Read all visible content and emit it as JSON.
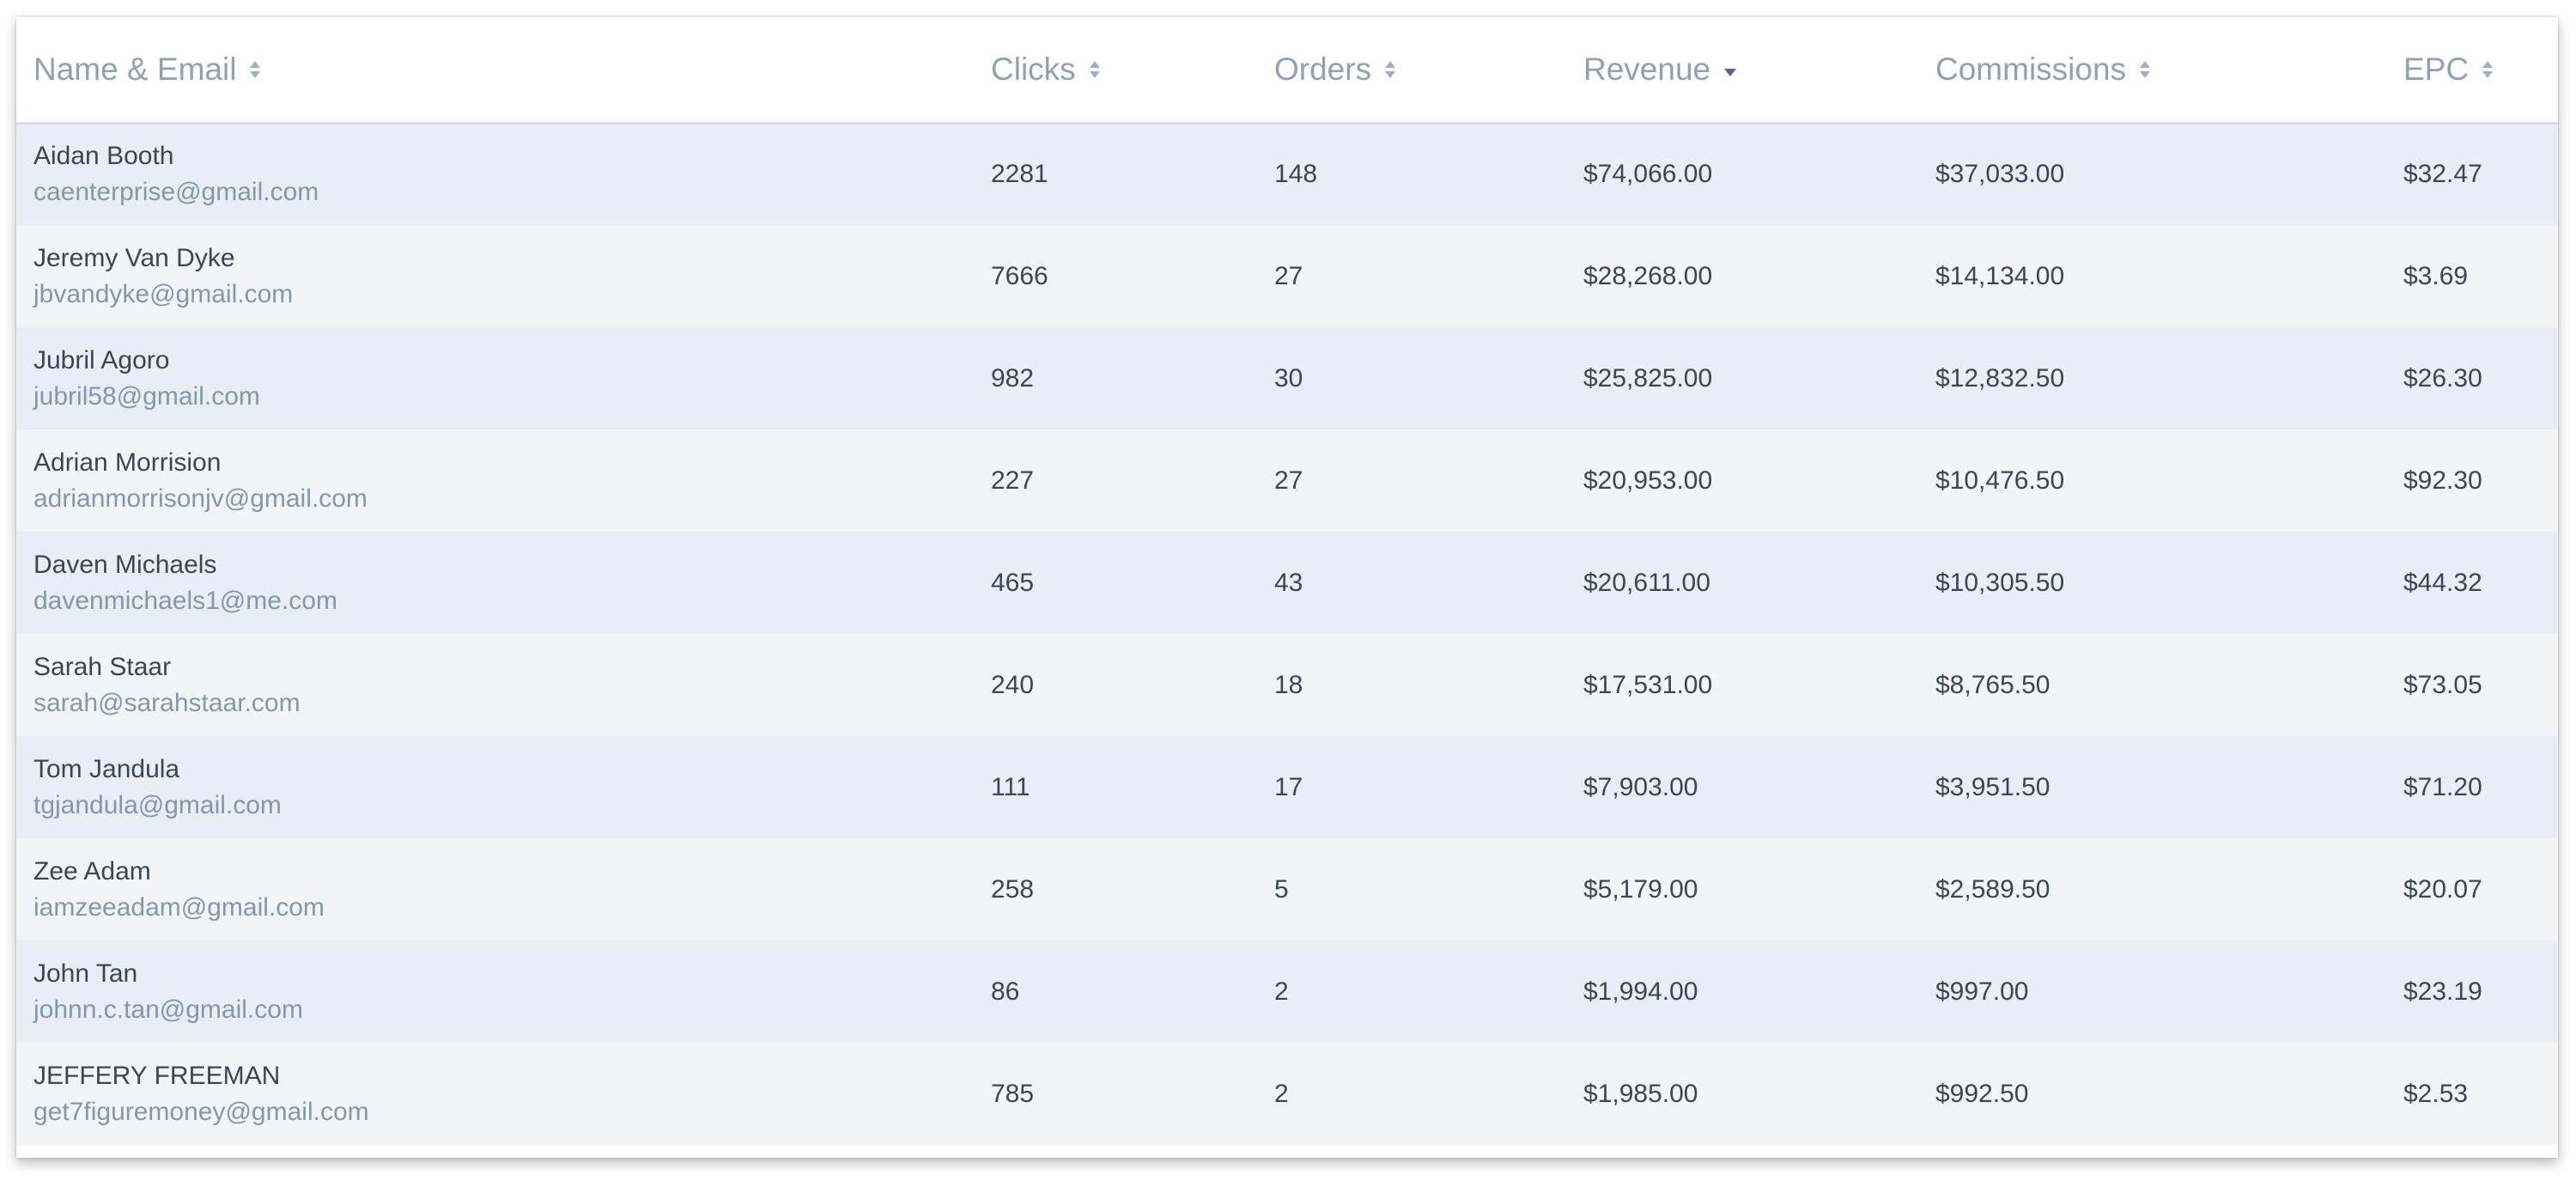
{
  "table": {
    "columns": [
      {
        "label": "Name & Email",
        "sort": "none"
      },
      {
        "label": "Clicks",
        "sort": "none"
      },
      {
        "label": "Orders",
        "sort": "none"
      },
      {
        "label": "Revenue",
        "sort": "desc"
      },
      {
        "label": "Commissions",
        "sort": "none"
      },
      {
        "label": "EPC",
        "sort": "none"
      }
    ],
    "rows": [
      {
        "name": "Aidan Booth",
        "email": "caenterprise@gmail.com",
        "clicks": "2281",
        "orders": "148",
        "revenue": "$74,066.00",
        "commissions": "$37,033.00",
        "epc": "$32.47"
      },
      {
        "name": "Jeremy Van Dyke",
        "email": "jbvandyke@gmail.com",
        "clicks": "7666",
        "orders": "27",
        "revenue": "$28,268.00",
        "commissions": "$14,134.00",
        "epc": "$3.69"
      },
      {
        "name": "Jubril Agoro",
        "email": "jubril58@gmail.com",
        "clicks": "982",
        "orders": "30",
        "revenue": "$25,825.00",
        "commissions": "$12,832.50",
        "epc": "$26.30"
      },
      {
        "name": "Adrian Morrision",
        "email": "adrianmorrisonjv@gmail.com",
        "clicks": "227",
        "orders": "27",
        "revenue": "$20,953.00",
        "commissions": "$10,476.50",
        "epc": "$92.30"
      },
      {
        "name": "Daven Michaels",
        "email": "davenmichaels1@me.com",
        "clicks": "465",
        "orders": "43",
        "revenue": "$20,611.00",
        "commissions": "$10,305.50",
        "epc": "$44.32"
      },
      {
        "name": "Sarah Staar",
        "email": "sarah@sarahstaar.com",
        "clicks": "240",
        "orders": "18",
        "revenue": "$17,531.00",
        "commissions": "$8,765.50",
        "epc": "$73.05"
      },
      {
        "name": "Tom Jandula",
        "email": "tgjandula@gmail.com",
        "clicks": "111",
        "orders": "17",
        "revenue": "$7,903.00",
        "commissions": "$3,951.50",
        "epc": "$71.20"
      },
      {
        "name": "Zee Adam",
        "email": "iamzeeadam@gmail.com",
        "clicks": "258",
        "orders": "5",
        "revenue": "$5,179.00",
        "commissions": "$2,589.50",
        "epc": "$20.07"
      },
      {
        "name": "John Tan",
        "email": "johnn.c.tan@gmail.com",
        "clicks": "86",
        "orders": "2",
        "revenue": "$1,994.00",
        "commissions": "$997.00",
        "epc": "$23.19"
      },
      {
        "name": "JEFFERY FREEMAN",
        "email": "get7figuremoney@gmail.com",
        "clicks": "785",
        "orders": "2",
        "revenue": "$1,985.00",
        "commissions": "$992.50",
        "epc": "$2.53"
      }
    ]
  },
  "colors": {
    "header_text": "#8fa1b3",
    "body_text": "#3b4654",
    "email_text": "#8198ad",
    "row_odd": "#e8eef3",
    "row_even": "#f1f5f8"
  },
  "icons": {
    "sort_both": "sort-icon",
    "sort_desc": "sort-desc-icon"
  }
}
